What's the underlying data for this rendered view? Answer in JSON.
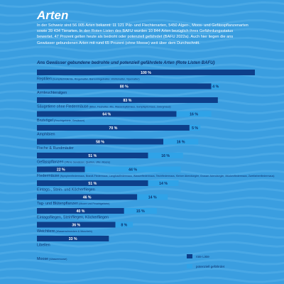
{
  "page": {
    "title": "Arten",
    "intro": "In der Schweiz sind 56 005 Arten bekannt: 11 121 Pilz- und Flechtenarten, 5450 Algen-, Moos- und Gefässpflanzenarten sowie 39 434 Tierarten. In den Roten Listen des BAFU wurden 10 844 Arten bezüglich ihres Gefährdungsstatus bewertet. 47 Prozent gelten heute als bedroht oder potenziell gefährdet (BAFU 2022a). Auch hier liegen die ans Gewässer gebundenen Arten mit rund 65 Prozent (ohne Moose) weit über dem Durchschnitt."
  },
  "colors": {
    "background": "#3a9ee0",
    "wave": "#55b0ea",
    "dark_bar": "#0d3f8a",
    "light_bar": "#2fa3e8",
    "text_dark": "#0b2f6b"
  },
  "chart_data": {
    "type": "bar",
    "orientation": "horizontal",
    "stacked": true,
    "title": "Ans Gewässer gebundene bedrohte und potenziell gefährdete Arten (Rote Listen BAFU)",
    "xlim": [
      0,
      100
    ],
    "unit": "%",
    "series": [
      {
        "name": "rote Liste",
        "color": "#0d3f8a"
      },
      {
        "name": "potenziell gefährdet",
        "color": "#2fa3e8"
      }
    ],
    "legend": {
      "position": "bottom-right",
      "items": [
        "rote Liste",
        "potenziell gefährdet"
      ]
    },
    "categories": [
      {
        "label": "Reptilien",
        "sublabel": "(Sumpfschildkröte, Ringelnatter, Barrenringelnatter, Würfelnatter, Vipernatter)",
        "red": 100,
        "potential": 0,
        "red_label": "100 %",
        "potential_label": ""
      },
      {
        "label": "Armleuchteralgen",
        "sublabel": "",
        "red": 80,
        "potential": 4,
        "red_label": "80 %",
        "potential_label": "4 %"
      },
      {
        "label": "Säugetiere ohne Fledermäuse",
        "sublabel": "(Biber, Fischotter, Iltis, Wasserspitzmaus, Sumpfspitzmaus, Zwergmaus)",
        "red": 83,
        "potential": 0,
        "red_label": "83 %",
        "potential_label": ""
      },
      {
        "label": "Brutvögel",
        "sublabel": "(Feuchtgebiete, Gewässer)",
        "red": 64,
        "potential": 16,
        "red_label": "64 %",
        "potential_label": "16 %"
      },
      {
        "label": "Amphibien",
        "sublabel": "",
        "red": 70,
        "potential": 5,
        "red_label": "70 %",
        "potential_label": "5 %"
      },
      {
        "label": "Fische & Rundmäuler",
        "sublabel": "",
        "red": 58,
        "potential": 16,
        "red_label": "58 %",
        "potential_label": "16 %"
      },
      {
        "label": "Gefässpflanzen",
        "sublabel": "(offene Gewässer, Quellen, Ufer, Moore)",
        "red": 51,
        "potential": 16,
        "red_label": "51 %",
        "potential_label": "16 %"
      },
      {
        "label": "Fledermäuse",
        "sublabel": "(Nymphenfledermaus, Brandt-Fledermaus, Langfussfledermaus, Wasserfledermaus, Teichfledermaus, Kleiner Abendsegler, Grosser Abendsegler, Mückenfledermaus, Zweifarbenfledermaus)",
        "red": 22,
        "potential": 44,
        "red_label": "22 %",
        "potential_label": "44 %"
      },
      {
        "label": "Eintags-, Stein- und Köcherfliegen",
        "sublabel": "",
        "red": 51,
        "potential": 14,
        "red_label": "51 %",
        "potential_label": "14 %"
      },
      {
        "label": "Tag- und Blütenpflanzen",
        "sublabel": "(Moore und Feuchtgebiete)",
        "red": 46,
        "potential": 14,
        "red_label": "46 %",
        "potential_label": "14 %"
      },
      {
        "label": "Eintagsfliegen, Steinfliegen, Köcherfliegen",
        "sublabel": "",
        "red": 40,
        "potential": 15,
        "red_label": "40 %",
        "potential_label": "15 %"
      },
      {
        "label": "Weichtiere",
        "sublabel": "(Wasserschnecken & Muscheln)",
        "red": 36,
        "potential": 8,
        "red_label": "36 %",
        "potential_label": "8 %"
      },
      {
        "label": "Libellen",
        "sublabel": "",
        "red": 33,
        "potential": 0,
        "red_label": "33 %",
        "potential_label": ""
      },
      {
        "label": "Moose",
        "sublabel": "(Wassermoose)",
        "red": 0,
        "potential": 0,
        "red_label": "",
        "potential_label": ""
      }
    ]
  }
}
